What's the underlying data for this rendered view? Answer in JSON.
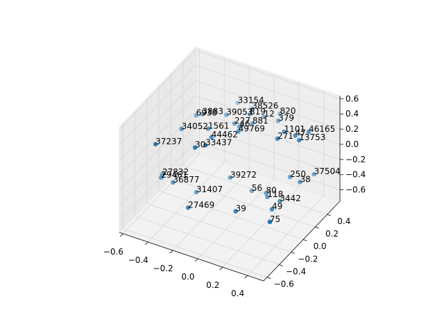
{
  "chart_data": {
    "type": "scatter3d",
    "labels": [
      "33154",
      "38526",
      "6938",
      "3883",
      "39053",
      "819",
      "12",
      "820",
      "379",
      "227",
      "881",
      "46",
      "1561",
      "49769",
      "34052",
      "44462",
      "37237",
      "30",
      "33437",
      "271",
      "1101",
      "47",
      "46165",
      "13753",
      "27832",
      "29461",
      "36877",
      "39272",
      "250",
      "37504",
      "38",
      "31407",
      "56",
      "80",
      "118",
      "3442",
      "27469",
      "39",
      "49",
      "75"
    ],
    "x": [
      -0.2,
      -0.08,
      -0.38,
      -0.35,
      -0.2,
      -0.06,
      0.04,
      0.12,
      0.15,
      -0.1,
      0.01,
      -0.05,
      -0.23,
      -0.03,
      -0.39,
      -0.16,
      -0.46,
      -0.2,
      -0.15,
      0.25,
      0.25,
      0.34,
      0.4,
      0.39,
      -0.55,
      -0.54,
      -0.44,
      -0.12,
      0.24,
      0.37,
      0.33,
      -0.33,
      0.0,
      0.1,
      0.13,
      0.23,
      -0.29,
      0.02,
      0.23,
      0.29
    ],
    "y": [
      0.42,
      0.41,
      0.1,
      0.14,
      0.23,
      0.33,
      0.36,
      0.46,
      0.37,
      0.16,
      0.23,
      0.14,
      -0.01,
      0.08,
      -0.12,
      -0.1,
      -0.41,
      -0.29,
      -0.22,
      0.15,
      0.26,
      0.26,
      0.36,
      0.22,
      -0.11,
      -0.15,
      -0.16,
      0.13,
      0.38,
      0.51,
      0.36,
      0.0,
      0.24,
      0.27,
      0.23,
      0.23,
      -0.22,
      -0.07,
      0.1,
      -0.06
    ],
    "z": [
      0.3,
      0.3,
      0.3,
      0.3,
      0.3,
      0.3,
      0.3,
      0.3,
      0.3,
      0.3,
      0.3,
      0.3,
      0.3,
      0.3,
      0.3,
      0.3,
      0.3,
      0.3,
      0.3,
      0.3,
      0.3,
      0.3,
      0.3,
      0.3,
      -0.4,
      -0.4,
      -0.4,
      -0.4,
      -0.4,
      -0.4,
      -0.4,
      -0.6,
      -0.6,
      -0.6,
      -0.6,
      -0.6,
      -0.6,
      -0.6,
      -0.6,
      -0.6
    ],
    "color": "#1f77b4",
    "xlim": [
      -0.63,
      0.53
    ],
    "ylim": [
      -0.66,
      0.61
    ],
    "zlim": [
      -0.75,
      0.64
    ],
    "xticks": [
      {
        "value": -0.6,
        "label": "−0.6"
      },
      {
        "value": -0.4,
        "label": "−0.4"
      },
      {
        "value": -0.2,
        "label": "−0.2"
      },
      {
        "value": 0,
        "label": "0.0"
      },
      0.2,
      0.4
    ],
    "yticks": [
      {
        "value": -0.6,
        "label": "−0.6"
      },
      {
        "value": -0.4,
        "label": "−0.4"
      },
      {
        "value": -0.2,
        "label": "−0.2"
      },
      {
        "value": 0,
        "label": "0.0"
      },
      0.2,
      0.4
    ],
    "zticks": [
      {
        "value": -0.6,
        "label": "−0.6"
      },
      {
        "value": -0.4,
        "label": "−0.4"
      },
      {
        "value": -0.2,
        "label": "−0.2"
      },
      {
        "value": 0,
        "label": "0.0"
      },
      0.2,
      0.4,
      0.6
    ],
    "grid": true
  }
}
